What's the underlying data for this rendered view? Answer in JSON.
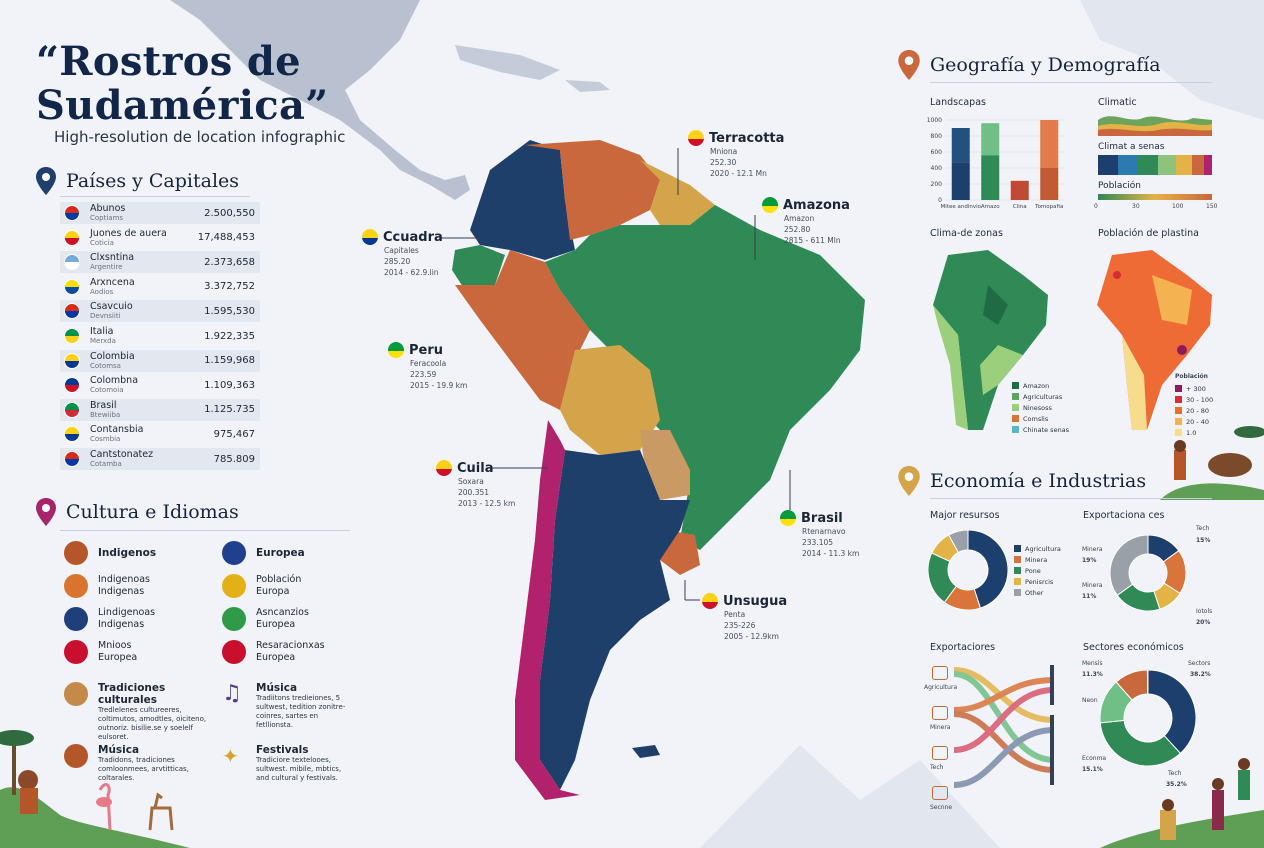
{
  "header": {
    "title_line1": "“Rostros de",
    "title_line2": "Sudamérica”",
    "subtitle": "High-resolution de location infographic"
  },
  "countries": {
    "heading": "Países y Capitales",
    "rows": [
      {
        "name": "Abunos",
        "capital": "Coptiams",
        "value": "2.500,550",
        "flag": [
          "#d52b1e",
          "#0039a6"
        ]
      },
      {
        "name": "Juones de auera",
        "capital": "Coticia",
        "value": "17,488,453",
        "flag": [
          "#fcd116",
          "#ce1126"
        ]
      },
      {
        "name": "Clxsntina",
        "capital": "Argentire",
        "value": "2.373,658",
        "flag": [
          "#75aadb",
          "#ffffff"
        ]
      },
      {
        "name": "Arxncena",
        "capital": "Aodios",
        "value": "3.372,752",
        "flag": [
          "#ffdd00",
          "#034ea2"
        ]
      },
      {
        "name": "Csavcuio",
        "capital": "Devnsiiti",
        "value": "1.595,530",
        "flag": [
          "#d52b1e",
          "#0039a6"
        ]
      },
      {
        "name": "Italia",
        "capital": "Merxda",
        "value": "1.922,335",
        "flag": [
          "#009246",
          "#fcd116"
        ]
      },
      {
        "name": "Colombia",
        "capital": "Cotomsa",
        "value": "1.159,968",
        "flag": [
          "#fcd116",
          "#003893"
        ]
      },
      {
        "name": "Colombna",
        "capital": "Cotomoia",
        "value": "1.109,363",
        "flag": [
          "#003893",
          "#ce1126"
        ]
      },
      {
        "name": "Brasil",
        "capital": "Btewiiba",
        "value": "1.125.735",
        "flag": [
          "#009246",
          "#ce2b37"
        ]
      },
      {
        "name": "Contansbia",
        "capital": "Cosmbia",
        "value": "975,467",
        "flag": [
          "#fcd116",
          "#003893"
        ]
      },
      {
        "name": "Cantstonatez",
        "capital": "Cotamba",
        "value": "785.809",
        "flag": [
          "#d52b1e",
          "#0039a6"
        ]
      }
    ]
  },
  "culture": {
    "heading": "Cultura e Idiomas",
    "left_items": [
      {
        "icon": "indigenous-person-icon",
        "title": "Indigenos",
        "desc": "",
        "bold": true,
        "color": "#b5562a"
      },
      {
        "icon": "andean-flag-icon",
        "title": "Indigenoas",
        "desc": "Indigenas",
        "bold": false,
        "color": "#d9742f"
      },
      {
        "icon": "union-jack-icon",
        "title": "Lindigenoas",
        "desc": "Indigenas",
        "bold": false,
        "color": "#1f3f7a"
      },
      {
        "icon": "spain-flag-icon",
        "title": "Mnioos",
        "desc": "Europea",
        "bold": false,
        "color": "#c8102e"
      }
    ],
    "right_items": [
      {
        "icon": "eu-flag-icon",
        "title": "Europea",
        "desc": "",
        "bold": true,
        "color": "#1f3f8f"
      },
      {
        "icon": "romania-flag-icon",
        "title": "Población",
        "desc": "Europa",
        "bold": false,
        "color": "#e3b117"
      },
      {
        "icon": "italy-flag-icon",
        "title": "Asncanzios",
        "desc": "Europea",
        "bold": false,
        "color": "#2f9b4a"
      },
      {
        "icon": "czech-flag-icon",
        "title": "Resaracionxas",
        "desc": "Europea",
        "bold": false,
        "color": "#c8102e"
      }
    ],
    "traditions": {
      "title": "Tradiciones culturales",
      "desc": "Tredlelenes cultureeres, coltimutos, amodtles, oiciteno, outnoriz. bisilie.se y soelelf eulsoret."
    },
    "music1": {
      "title": "Música",
      "desc": "Tradiitons tredieiones, 5 sultwest, tedition zonitre-coinres, sartes en fetllionsta."
    },
    "music2": {
      "title": "Música",
      "desc": "Tradidons, tradiciones comloonmees, arvtitticas, coltarales."
    },
    "festivals": {
      "title": "Festivals",
      "desc": "Tradiciore textelooes, sultwest. mibile, mbtics, and cultural y festivals."
    }
  },
  "callouts": {
    "terracotta": {
      "name": "Terracotta",
      "l1": "Mniona",
      "l2": "252.30",
      "l3": "2020 - 12.1 Mn",
      "flag": [
        "#fcd116",
        "#ce1126"
      ]
    },
    "amazona": {
      "name": "Amazona",
      "l1": "Amazon",
      "l2": "252.80",
      "l3": "2815 - 611 Mln",
      "flag": [
        "#009c3b",
        "#ffdf00"
      ]
    },
    "cuadra": {
      "name": "Ccuadra",
      "l1": "Capitales",
      "l2": "285.20",
      "l3": "2014 - 62.9.lin",
      "flag": [
        "#fcd116",
        "#003893"
      ]
    },
    "peru": {
      "name": "Peru",
      "l1": "Feracoola",
      "l2": "223.59",
      "l3": "2015 - 19.9 km",
      "flag": [
        "#009c3b",
        "#ffdf00"
      ]
    },
    "cuila": {
      "name": "Cuila",
      "l1": "Soxara",
      "l2": "200.351",
      "l3": "2013 - 12.5 km",
      "flag": [
        "#fcd116",
        "#ce1126"
      ]
    },
    "brasil": {
      "name": "Brasil",
      "l1": "Rtenarnavo",
      "l2": "233.105",
      "l3": "2014 - 11.3 km",
      "flag": [
        "#009c3b",
        "#ffdf00"
      ]
    },
    "unsugua": {
      "name": "Unsugua",
      "l1": "Penta",
      "l2": "235-226",
      "l3": "2005 - 12.9km",
      "flag": [
        "#fcd116",
        "#ce1126"
      ]
    }
  },
  "geo": {
    "heading": "Geografía y Demografía",
    "landscapes_label": "Landscapas",
    "climatic_label": "Climatic",
    "climate_zones_label": "Climat a senas",
    "population_label": "Población",
    "pop_ticks": [
      "0",
      "30",
      "100",
      "150"
    ],
    "clima_map_label": "Clima-de zonas",
    "pop_map_label": "Población de plastina",
    "clima_legend": [
      {
        "label": "Amazon",
        "color": "#1e6b45"
      },
      {
        "label": "Agriculturas",
        "color": "#5aa65b"
      },
      {
        "label": "Ninesoss",
        "color": "#9ccf7b"
      },
      {
        "label": "Comslis",
        "color": "#d9743a"
      },
      {
        "label": "Chinate senas",
        "color": "#58b7c5"
      }
    ],
    "pop_legend_title": "Población",
    "pop_legend": [
      {
        "label": "+ 300",
        "color": "#8c1d5a"
      },
      {
        "label": "30 - 100",
        "color": "#d62d3a"
      },
      {
        "label": "20 - 80",
        "color": "#ef6b35"
      },
      {
        "label": "20 - 40",
        "color": "#f4b350"
      },
      {
        "label": "1.0",
        "color": "#f6dc8c"
      }
    ]
  },
  "economy": {
    "heading": "Economía e Industrias",
    "major_label": "Major resursos",
    "major_legend": [
      {
        "label": "Agricultura",
        "color": "#1d3f6e"
      },
      {
        "label": "Minera",
        "color": "#d9743a"
      },
      {
        "label": "Pone",
        "color": "#2f8a55"
      },
      {
        "label": "Penisrcis",
        "color": "#e3b348"
      },
      {
        "label": "Other",
        "color": "#9aa0a8"
      }
    ],
    "export_label": "Exportaciona ces",
    "export_annots": {
      "tech": "Tech",
      "tech_v": "15%",
      "minera1": "Minera",
      "minera1_v": "19%",
      "minera2": "Minera",
      "minera2_v": "11%",
      "iotols": "Iotols",
      "iotols_v": "20%"
    },
    "exportaciones_label": "Exportaciores",
    "flow_labels": [
      "Agricultura",
      "Minera",
      "Tech",
      "Secnne"
    ],
    "sectors_label": "Sectores económicos",
    "sector_annots": {
      "mensis": "Mensis",
      "mensis_v": "11.3%",
      "sectors": "Sectors",
      "sectors_v": "38.2%",
      "neon": "Neon",
      "ecomme": "Econma",
      "ecomme_v": "15.1%",
      "tech": "Tech",
      "tech_v": "35.2%"
    }
  },
  "chart_data": [
    {
      "type": "bar",
      "title": "Landscapas",
      "categories": [
        "Mitee andinvio",
        "Amazo",
        "Clina",
        "Tomopafia"
      ],
      "series": [
        {
          "values": [
            470,
            560,
            0,
            400
          ],
          "colors": [
            "#1d3f6e",
            "#2f8a55",
            "#e89a6a",
            "#c45a33"
          ]
        },
        {
          "values": [
            430,
            400,
            240,
            600
          ],
          "colors": [
            "#23507f",
            "#6fbf86",
            "#c04a35",
            "#e07b4c"
          ]
        }
      ],
      "ylim": [
        0,
        1000
      ],
      "yticks": [
        "0",
        "200",
        "400",
        "600",
        "800",
        "1000"
      ]
    },
    {
      "type": "pie",
      "title": "Major resursos",
      "labels": [
        "Agricultura",
        "Minera",
        "Pone",
        "Penisrcis",
        "Other"
      ],
      "values": [
        45,
        15,
        22,
        10,
        8
      ]
    },
    {
      "type": "pie",
      "title": "Exportaciona ces",
      "labels": [
        "Tech",
        "Minera",
        "Minera",
        "Iotols",
        "Other"
      ],
      "values": [
        15,
        19,
        11,
        20,
        35
      ]
    },
    {
      "type": "pie",
      "title": "Sectores económicos",
      "labels": [
        "Sectors",
        "Tech",
        "Econma",
        "Mensis",
        "Neon"
      ],
      "values": [
        38.2,
        35.2,
        15.1,
        11.3,
        0.2
      ]
    }
  ]
}
